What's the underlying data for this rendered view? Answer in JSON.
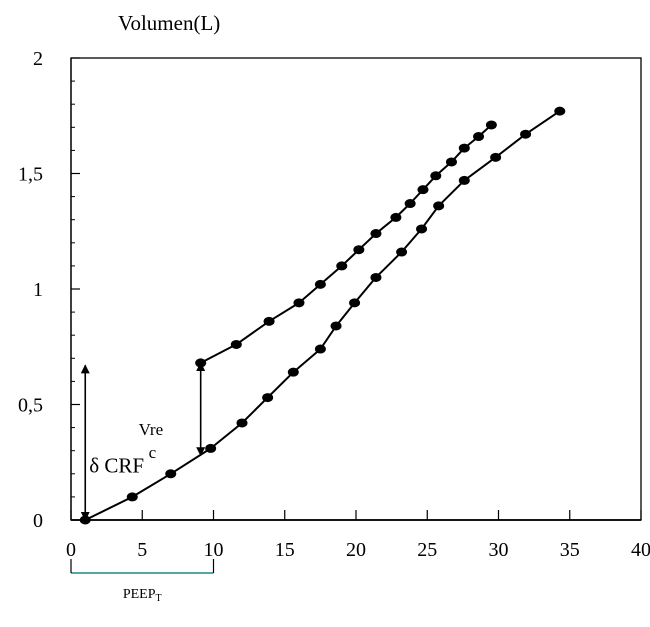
{
  "chart_data": {
    "type": "scatter",
    "title": "",
    "xlabel": "",
    "ylabel": "Volumen(L)",
    "xlim": [
      0,
      40
    ],
    "ylim": [
      0,
      2
    ],
    "x_ticks": [
      "0",
      "5",
      "10",
      "15",
      "20",
      "25",
      "30",
      "35",
      "40"
    ],
    "y_ticks": [
      "0",
      "0,5",
      "1",
      "1,5",
      "2"
    ],
    "grid": false,
    "legend": "none",
    "series": [
      {
        "color": "#000000",
        "points": [
          [
            1.0,
            0.0
          ],
          [
            4.3,
            0.1
          ],
          [
            7.0,
            0.2
          ],
          [
            9.8,
            0.31
          ],
          [
            12.0,
            0.42
          ],
          [
            13.8,
            0.53
          ],
          [
            15.6,
            0.64
          ],
          [
            17.5,
            0.74
          ],
          [
            18.6,
            0.84
          ],
          [
            19.9,
            0.94
          ],
          [
            21.4,
            1.05
          ],
          [
            23.2,
            1.16
          ],
          [
            24.6,
            1.26
          ],
          [
            25.8,
            1.36
          ],
          [
            27.6,
            1.47
          ],
          [
            29.8,
            1.57
          ],
          [
            31.9,
            1.67
          ],
          [
            34.3,
            1.77
          ]
        ]
      },
      {
        "color": "#000000",
        "points": [
          [
            9.1,
            0.68
          ],
          [
            11.6,
            0.76
          ],
          [
            13.9,
            0.86
          ],
          [
            16.0,
            0.94
          ],
          [
            17.5,
            1.02
          ],
          [
            19.0,
            1.1
          ],
          [
            20.2,
            1.17
          ],
          [
            21.4,
            1.24
          ],
          [
            22.8,
            1.31
          ],
          [
            23.8,
            1.37
          ],
          [
            24.7,
            1.43
          ],
          [
            25.6,
            1.49
          ],
          [
            26.7,
            1.55
          ],
          [
            27.6,
            1.61
          ],
          [
            28.6,
            1.66
          ],
          [
            29.5,
            1.71
          ]
        ]
      }
    ],
    "annotations": {
      "delta_crf": {
        "label": "δ CRF",
        "x": 1.0,
        "y_from": 0.0,
        "y_to": 0.67
      },
      "vrec": {
        "label_line1": "Vre",
        "label_line2": "c",
        "x": 9.1,
        "y_from": 0.28,
        "y_to": 0.68
      },
      "peep": {
        "label": "PEEP",
        "label_sub": "T",
        "x_from": 0,
        "x_to": 10,
        "color": "#1a8a86"
      }
    }
  }
}
